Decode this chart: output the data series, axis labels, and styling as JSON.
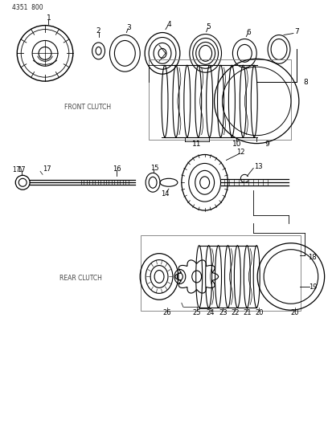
{
  "title_text": "4351  800",
  "bg_color": "#ffffff",
  "line_color": "#000000",
  "fig_width": 4.08,
  "fig_height": 5.33,
  "front_clutch_label": "FRONT CLUTCH",
  "rear_clutch_label": "REAR CLUTCH"
}
